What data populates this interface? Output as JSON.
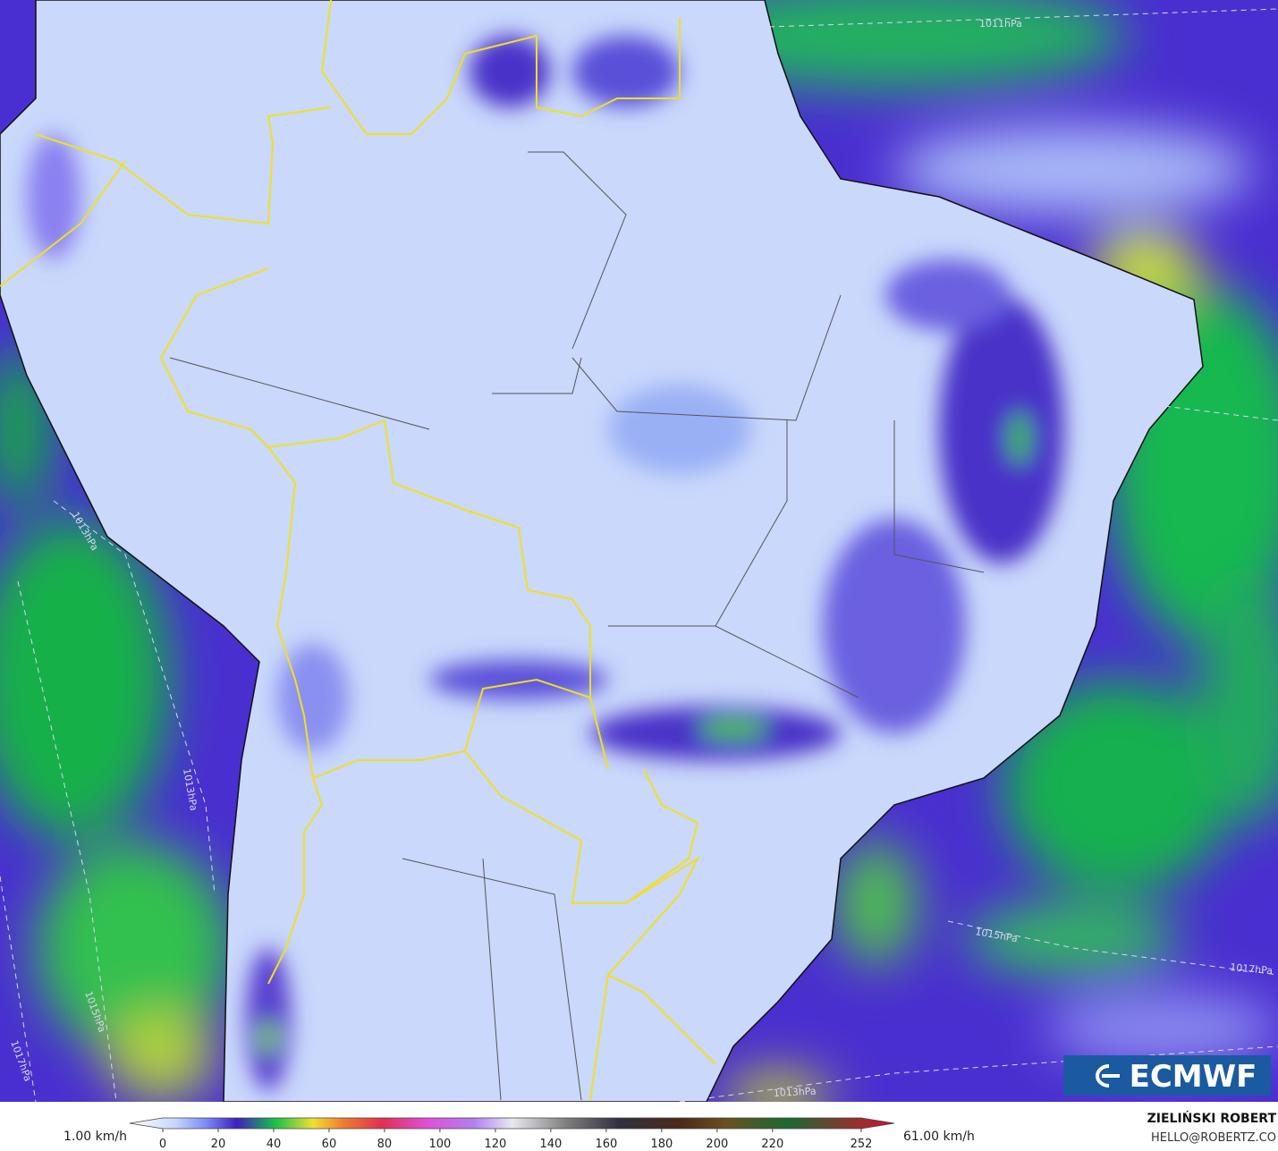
{
  "map": {
    "isobar_labels": [
      "1011hPa",
      "1013hPa",
      "1013hPa",
      "1015hPa",
      "1017hPa",
      "1015hPa",
      "1017hPa",
      "1013hPa"
    ]
  },
  "logo": "ECMWF",
  "legend": {
    "min_label": "1.00 km/h",
    "max_label": "61.00 km/h",
    "ticks": [
      0,
      20,
      40,
      60,
      80,
      100,
      120,
      140,
      160,
      180,
      200,
      220,
      252
    ]
  },
  "credit": {
    "name": "ZIELIŃSKI ROBERT",
    "email": "HELLO@ROBERTZ.CO"
  }
}
